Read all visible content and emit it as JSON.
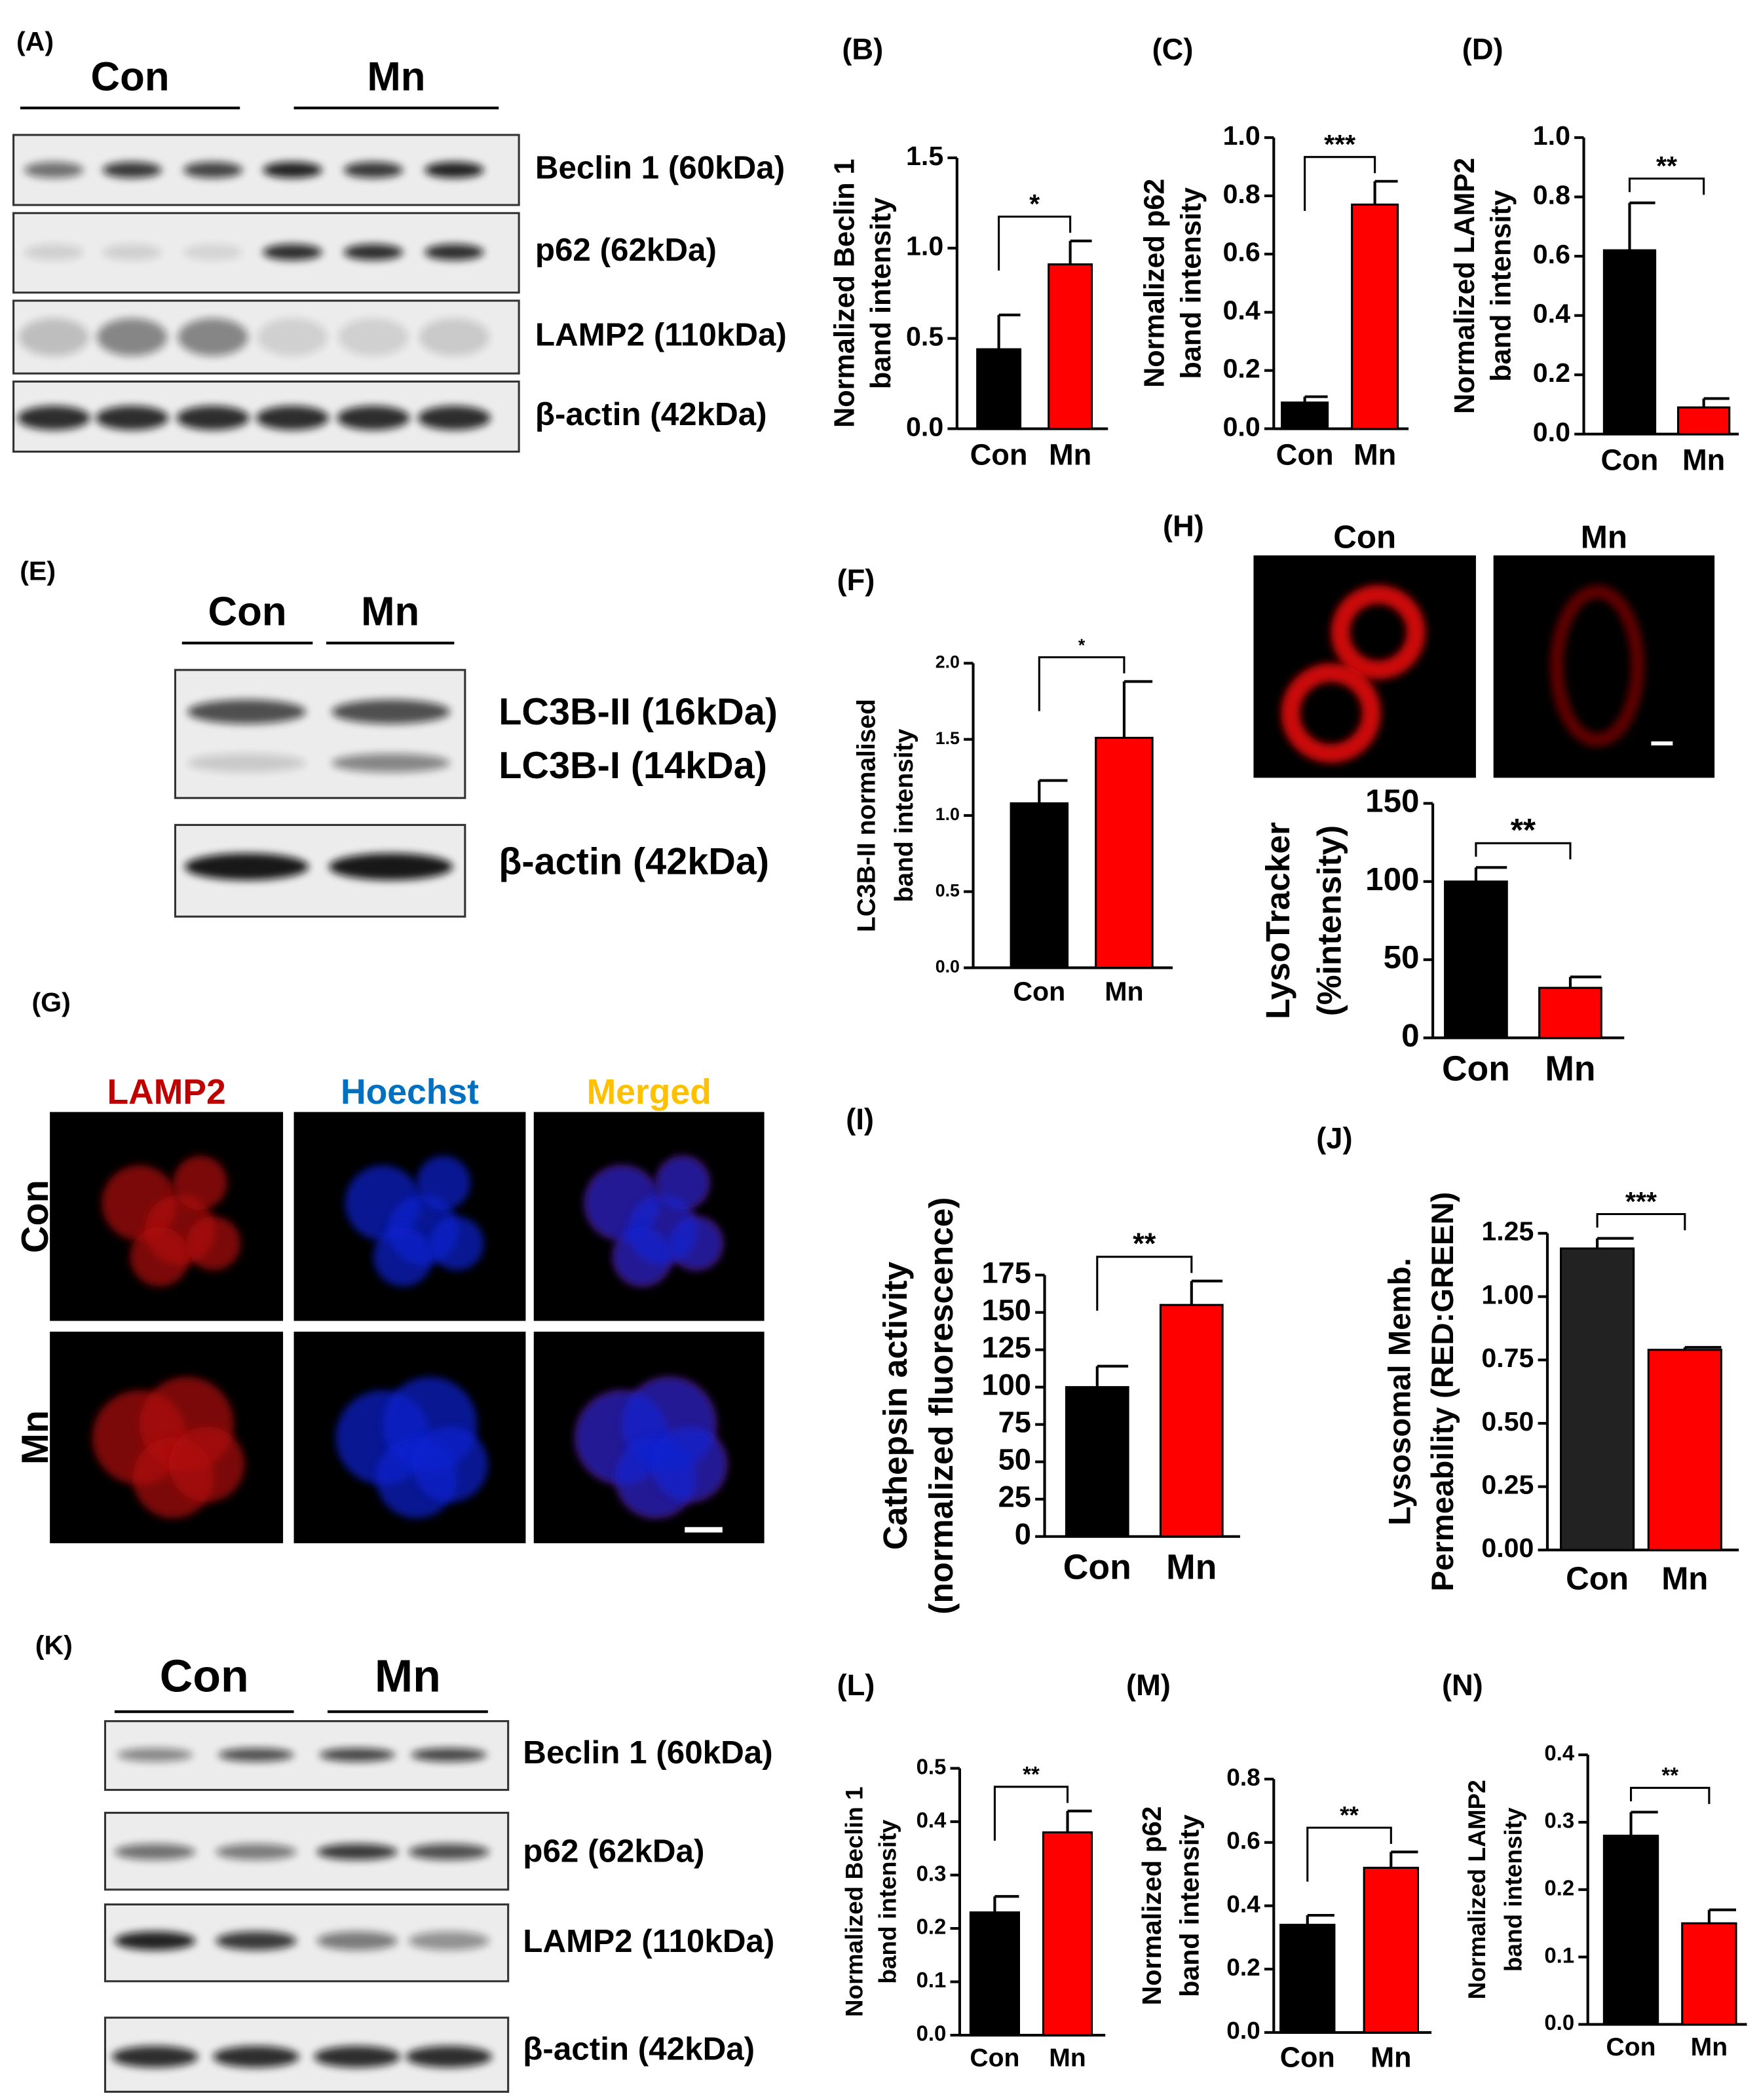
{
  "chart_data": [
    {
      "type": "bar",
      "label": "(B)",
      "ylabel": [
        "Normalized Beclin 1",
        "band intensity"
      ],
      "categories": [
        "Con",
        "Mn"
      ],
      "values": [
        0.44,
        0.91
      ],
      "errors": [
        0.19,
        0.13
      ],
      "colors": [
        "#000000",
        "#ff0000"
      ],
      "ylim": [
        0,
        1.5
      ],
      "yticks": [
        {
          "value": 0,
          "label": "0.0"
        },
        0.5,
        {
          "value": 1,
          "label": "1.0"
        },
        1.5
      ],
      "significance": "*"
    },
    {
      "type": "bar",
      "label": "(C)",
      "ylabel": [
        "Normalized p62",
        "band intensity"
      ],
      "categories": [
        "Con",
        "Mn"
      ],
      "values": [
        0.09,
        0.77
      ],
      "errors": [
        0.02,
        0.08
      ],
      "colors": [
        "#000000",
        "#ff0000"
      ],
      "ylim": [
        0,
        1
      ],
      "yticks": [
        {
          "value": 0,
          "label": "0.0"
        },
        0.2,
        0.4,
        0.6,
        0.8,
        {
          "value": 1,
          "label": "1.0"
        }
      ],
      "significance": "***"
    },
    {
      "type": "bar",
      "label": "(D)",
      "ylabel": [
        "Normalized LAMP2",
        "band intensity"
      ],
      "categories": [
        "Con",
        "Mn"
      ],
      "values": [
        0.62,
        0.09
      ],
      "errors": [
        0.16,
        0.03
      ],
      "colors": [
        "#000000",
        "#ff0000"
      ],
      "ylim": [
        0,
        1
      ],
      "yticks": [
        {
          "value": 0,
          "label": "0.0"
        },
        0.2,
        0.4,
        0.6,
        0.8,
        {
          "value": 1,
          "label": "1.0"
        }
      ],
      "significance": "**"
    },
    {
      "type": "bar",
      "label": "(F)",
      "ylabel": [
        "LC3B-II normalised",
        "band intensity"
      ],
      "categories": [
        "Con",
        "Mn"
      ],
      "values": [
        1.08,
        1.51
      ],
      "errors": [
        0.15,
        0.37
      ],
      "colors": [
        "#000000",
        "#ff0000"
      ],
      "ylim": [
        0,
        2
      ],
      "yticks": [
        {
          "value": 0,
          "label": "0.0"
        },
        0.5,
        {
          "value": 1,
          "label": "1.0"
        },
        1.5,
        {
          "value": 2,
          "label": "2.0"
        }
      ],
      "significance": "*"
    },
    {
      "type": "bar",
      "label": "(H)",
      "ylabel": [
        "LysoTracker",
        "(%intensity)"
      ],
      "categories": [
        "Con",
        "Mn"
      ],
      "values": [
        100,
        32
      ],
      "errors": [
        9,
        7
      ],
      "colors": [
        "#000000",
        "#ff0000"
      ],
      "ylim": [
        0,
        150
      ],
      "yticks": [
        0,
        50,
        100,
        150
      ],
      "significance": "**"
    },
    {
      "type": "bar",
      "label": "(I)",
      "ylabel": [
        "Cathepsin activity",
        "(normalized fluorescence)"
      ],
      "categories": [
        "Con",
        "Mn"
      ],
      "values": [
        100,
        155
      ],
      "errors": [
        14,
        16
      ],
      "colors": [
        "#000000",
        "#ff0000"
      ],
      "ylim": [
        0,
        175
      ],
      "yticks": [
        0,
        25,
        50,
        75,
        100,
        125,
        150,
        175
      ],
      "significance": "**"
    },
    {
      "type": "bar",
      "label": "(J)",
      "ylabel": [
        "Lysosomal Memb.",
        "Permeability (RED:GREEN)"
      ],
      "categories": [
        "Con",
        "Mn"
      ],
      "values": [
        1.19,
        0.79
      ],
      "errors": [
        0.04,
        0.01
      ],
      "colors": [
        "#222222",
        "#ff0000"
      ],
      "ylim": [
        0,
        1.25
      ],
      "yticks": [
        {
          "value": 0,
          "label": "0.00"
        },
        0.25,
        {
          "value": 0.5,
          "label": "0.50"
        },
        0.75,
        {
          "value": 1,
          "label": "1.00"
        },
        1.25
      ],
      "significance": "***"
    },
    {
      "type": "bar",
      "label": "(L)",
      "ylabel": [
        "Normalized Beclin 1",
        "band intensity"
      ],
      "categories": [
        "Con",
        "Mn"
      ],
      "values": [
        0.23,
        0.38
      ],
      "errors": [
        0.03,
        0.04
      ],
      "colors": [
        "#000000",
        "#ff0000"
      ],
      "ylim": [
        0,
        0.5
      ],
      "yticks": [
        {
          "value": 0,
          "label": "0.0"
        },
        0.1,
        0.2,
        0.3,
        0.4,
        0.5
      ],
      "significance": "**"
    },
    {
      "type": "bar",
      "label": "(M)",
      "ylabel": [
        "Normalized p62",
        "band intensity"
      ],
      "categories": [
        "Con",
        "Mn"
      ],
      "values": [
        0.34,
        0.52
      ],
      "errors": [
        0.03,
        0.05
      ],
      "colors": [
        "#000000",
        "#ff0000"
      ],
      "ylim": [
        0,
        0.8
      ],
      "yticks": [
        {
          "value": 0,
          "label": "0.0"
        },
        0.2,
        0.4,
        0.6,
        0.8
      ],
      "significance": "**"
    },
    {
      "type": "bar",
      "label": "(N)",
      "ylabel": [
        "Normalized LAMP2",
        "band intensity"
      ],
      "categories": [
        "Con",
        "Mn"
      ],
      "values": [
        0.28,
        0.15
      ],
      "errors": [
        0.035,
        0.02
      ],
      "colors": [
        "#000000",
        "#ff0000"
      ],
      "ylim": [
        0,
        0.4
      ],
      "yticks": [
        {
          "value": 0,
          "label": "0.0"
        },
        0.1,
        0.2,
        0.3,
        0.4
      ],
      "significance": "**"
    }
  ],
  "panels": {
    "A": {
      "label": "(A)",
      "groups": [
        "Con",
        "Mn"
      ],
      "bands": [
        "Beclin 1 (60kDa)",
        "p62 (62kDa)",
        "LAMP2 (110kDa)",
        "β-actin (42kDa)"
      ]
    },
    "E": {
      "label": "(E)",
      "groups": [
        "Con",
        "Mn"
      ],
      "bands": [
        "LC3B-II (16kDa)",
        "LC3B-I (14kDa)",
        "β-actin (42kDa)"
      ]
    },
    "G": {
      "label": "(G)",
      "columns": [
        "LAMP2",
        "Hoechst",
        "Merged"
      ],
      "rows": [
        "Con",
        "Mn"
      ]
    },
    "H": {
      "columns": [
        "Con",
        "Mn"
      ]
    },
    "K": {
      "label": "(K)",
      "groups": [
        "Con",
        "Mn"
      ],
      "bands": [
        "Beclin 1 (60kDa)",
        "p62 (62kDa)",
        "LAMP2 (110kDa)",
        "β-actin (42kDa)"
      ]
    }
  }
}
